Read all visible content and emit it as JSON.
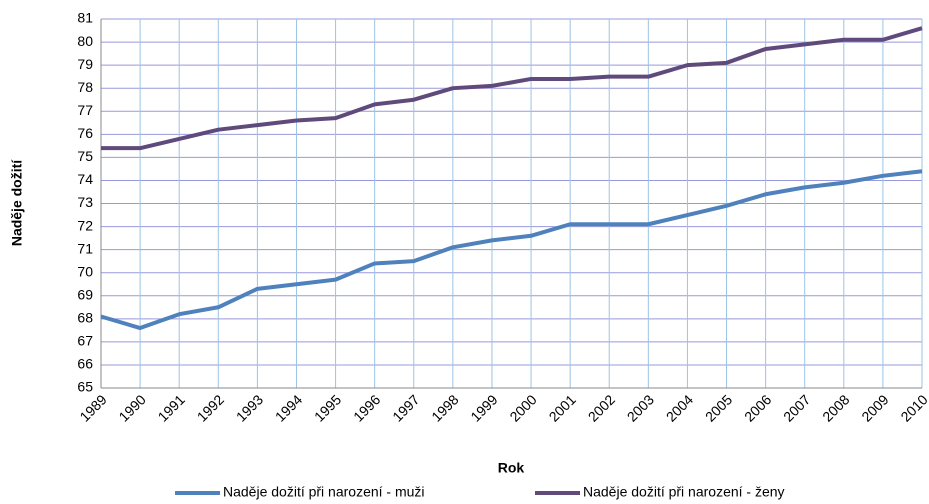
{
  "chart_data": {
    "type": "line",
    "xlabel": "Rok",
    "ylabel": "Naděje dožití",
    "categories": [
      "1989",
      "1990",
      "1991",
      "1992",
      "1993",
      "1994",
      "1995",
      "1996",
      "1997",
      "1998",
      "1999",
      "2000",
      "2001",
      "2002",
      "2003",
      "2004",
      "2005",
      "2006",
      "2007",
      "2008",
      "2009",
      "2010"
    ],
    "series": [
      {
        "name": "Naděje dožití při narození - muži",
        "color": "#4f81bd",
        "values": [
          68.1,
          67.6,
          68.2,
          68.5,
          69.3,
          69.5,
          69.7,
          70.4,
          70.5,
          71.1,
          71.4,
          71.6,
          72.1,
          72.1,
          72.1,
          72.5,
          72.9,
          73.4,
          73.7,
          73.9,
          74.2,
          74.4
        ]
      },
      {
        "name": "Naděje dožití při narození - ženy",
        "color": "#604a7b",
        "values": [
          75.4,
          75.4,
          75.8,
          76.2,
          76.4,
          76.6,
          76.7,
          77.3,
          77.5,
          78.0,
          78.1,
          78.4,
          78.4,
          78.5,
          78.5,
          79.0,
          79.1,
          79.7,
          79.9,
          80.1,
          80.1,
          80.6
        ]
      }
    ],
    "ylim": [
      65,
      81
    ],
    "yticks": [
      65,
      66,
      67,
      68,
      69,
      70,
      71,
      72,
      73,
      74,
      75,
      76,
      77,
      78,
      79,
      80,
      81
    ],
    "grid": true,
    "legend": "bottom"
  }
}
